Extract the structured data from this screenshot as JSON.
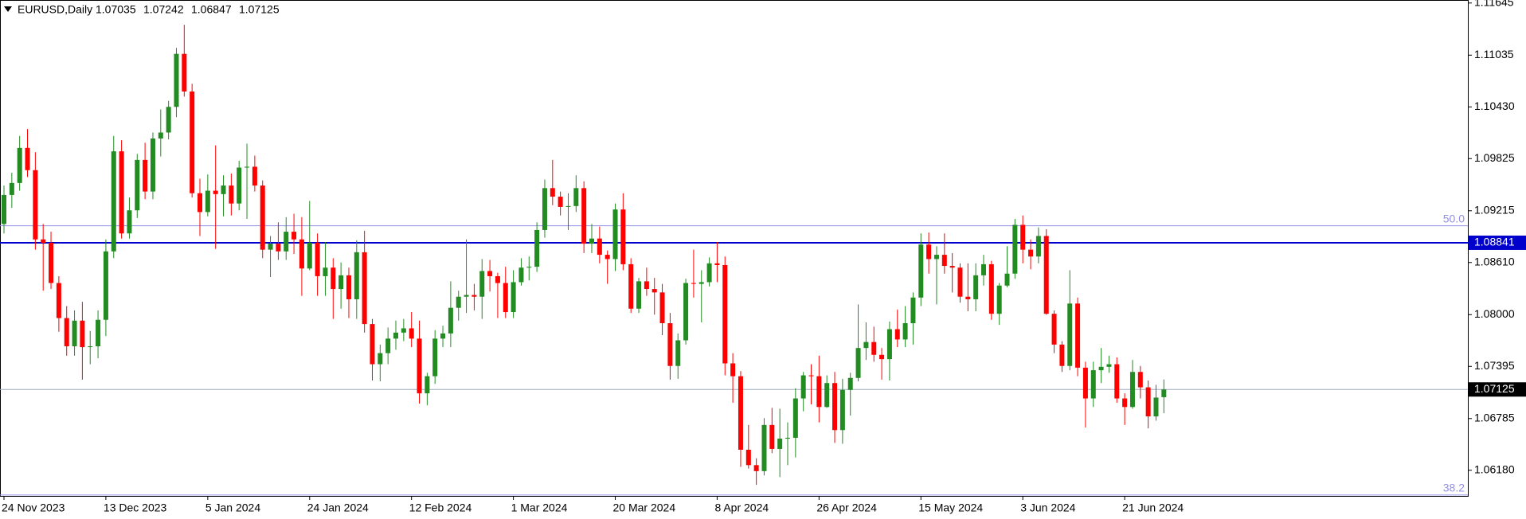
{
  "chart_data": {
    "type": "candlestick",
    "title": "EURUSD,Daily",
    "up_color": "#228b22",
    "down_color": "#ff0000",
    "ylim": [
      1.0588,
      1.1168
    ],
    "yticks": [
      1.11645,
      1.11035,
      {
        "value": 1.1043,
        "label": "1.10430"
      },
      1.09825,
      1.09215,
      {
        "value": 1.0861,
        "label": "1.08610"
      },
      {
        "value": 1.08,
        "label": "1.08000"
      },
      1.07395,
      1.06785,
      {
        "value": 1.0618,
        "label": "1.06180"
      }
    ],
    "hlines": [
      {
        "value": 1.08841,
        "color": "#0000cc"
      }
    ],
    "fib_levels": [
      {
        "value": 1.0904,
        "label": "50.0",
        "color": "#9090e8"
      },
      {
        "value": 1.0589,
        "label": "38.2",
        "color": "#9090e8"
      }
    ],
    "price_line_color": "#a0aec0",
    "categories": [
      "24 Nov 2023",
      null,
      null,
      null,
      null,
      null,
      null,
      null,
      null,
      null,
      null,
      null,
      null,
      "13 Dec 2023",
      null,
      null,
      null,
      null,
      null,
      null,
      null,
      null,
      null,
      null,
      null,
      null,
      "5 Jan 2024",
      null,
      null,
      null,
      null,
      null,
      null,
      null,
      null,
      null,
      null,
      null,
      null,
      "24 Jan 2024",
      null,
      null,
      null,
      null,
      null,
      null,
      null,
      null,
      null,
      null,
      null,
      null,
      "12 Feb 2024",
      null,
      null,
      null,
      null,
      null,
      null,
      null,
      null,
      null,
      null,
      null,
      null,
      "1 Mar 2024",
      null,
      null,
      null,
      null,
      null,
      null,
      null,
      null,
      null,
      null,
      null,
      null,
      "20 Mar 2024",
      null,
      null,
      null,
      null,
      null,
      null,
      null,
      null,
      null,
      null,
      null,
      null,
      "8 Apr 2024",
      null,
      null,
      null,
      null,
      null,
      null,
      null,
      null,
      null,
      null,
      null,
      null,
      "26 Apr 2024",
      null,
      null,
      null,
      null,
      null,
      null,
      null,
      null,
      null,
      null,
      null,
      null,
      "15 May 2024",
      null,
      null,
      null,
      null,
      null,
      null,
      null,
      null,
      null,
      null,
      null,
      null,
      "3 Jun 2024",
      null,
      null,
      null,
      null,
      null,
      null,
      null,
      null,
      null,
      null,
      null,
      null,
      "21 Jun 2024",
      null,
      null,
      null,
      null,
      null
    ],
    "open": [
      1.0906,
      1.094,
      1.0954,
      1.0995,
      1.0969,
      1.0888,
      1.0884,
      1.0837,
      1.0796,
      1.0763,
      1.0793,
      1.0762,
      1.0763,
      1.0794,
      1.0874,
      1.0991,
      1.0895,
      1.0922,
      1.0981,
      1.0944,
      1.1006,
      1.1013,
      1.1043,
      1.1105,
      1.1061,
      1.0942,
      1.092,
      1.0945,
      1.0941,
      1.0951,
      1.093,
      1.0972,
      1.0973,
      1.0951,
      1.0876,
      1.0883,
      1.0874,
      1.0897,
      1.0888,
      1.0854,
      1.0884,
      1.0845,
      1.0855,
      1.083,
      1.0846,
      1.0818,
      1.0873,
      1.0789,
      1.0742,
      1.0755,
      1.0772,
      1.0779,
      1.0784,
      1.0772,
      1.0708,
      1.0728,
      1.0772,
      1.0778,
      1.0808,
      1.0821,
      1.0823,
      1.0821,
      1.0851,
      1.0845,
      1.0837,
      1.0803,
      1.0838,
      1.0855,
      1.0856,
      1.0899,
      1.0948,
      1.0938,
      1.0926,
      1.0927,
      1.0948,
      1.0883,
      1.0889,
      1.087,
      1.0865,
      1.0923,
      1.0859,
      1.0807,
      1.0839,
      1.083,
      1.0826,
      1.079,
      1.074,
      1.077,
      1.0837,
      1.0836,
      1.0838,
      1.086,
      1.0858,
      1.0743,
      1.0728,
      1.0642,
      1.0624,
      1.0617,
      1.0671,
      1.0643,
      1.0655,
      1.0656,
      1.0702,
      1.0729,
      1.0728,
      1.0692,
      1.072,
      1.0665,
      1.0712,
      1.0726,
      1.0761,
      1.0768,
      1.0753,
      1.0748,
      1.0783,
      1.0771,
      1.079,
      1.082,
      1.0882,
      1.0865,
      1.087,
      1.0857,
      1.0855,
      1.0821,
      1.0818,
      1.0846,
      1.0859,
      1.0801,
      1.0834,
      1.0848,
      1.0905,
      1.0876,
      1.0868,
      1.0892,
      1.0801,
      1.0765,
      1.074,
      1.0813,
      1.0738,
      1.0702,
      1.0735,
      1.0739,
      1.0742,
      1.0702,
      1.0692,
      1.0733,
      1.0715,
      1.0681,
      1.07035
    ],
    "high": [
      1.0951,
      1.0966,
      1.1009,
      1.1017,
      1.099,
      1.0906,
      1.0897,
      1.0845,
      1.081,
      1.0805,
      1.0815,
      1.0781,
      1.0805,
      1.0888,
      1.1009,
      1.1004,
      1.0937,
      1.0988,
      1.1001,
      1.1013,
      1.104,
      1.105,
      1.1112,
      1.1139,
      1.107,
      1.0959,
      1.0964,
      1.0998,
      1.0963,
      1.0965,
      1.098,
      1.1,
      1.0986,
      1.0957,
      1.0892,
      1.0908,
      1.0914,
      1.0918,
      1.0914,
      1.0933,
      1.0895,
      1.0885,
      1.0866,
      1.0861,
      1.0855,
      1.0887,
      1.0898,
      1.0795,
      1.0765,
      1.0785,
      1.0793,
      1.0795,
      1.0803,
      1.0793,
      1.0732,
      1.0782,
      1.0787,
      1.0839,
      1.0828,
      1.0888,
      1.0836,
      1.0865,
      1.0864,
      1.0849,
      1.0856,
      1.0852,
      1.0866,
      1.0868,
      1.0908,
      1.0958,
      1.0981,
      1.0944,
      1.0942,
      1.0963,
      1.0956,
      1.0906,
      1.0903,
      1.0875,
      1.093,
      1.0942,
      1.0866,
      1.0843,
      1.0855,
      1.0843,
      1.0836,
      1.0802,
      1.0778,
      1.0842,
      1.0876,
      1.0852,
      1.0867,
      1.0885,
      1.0868,
      1.0755,
      1.0734,
      1.0671,
      1.0632,
      1.0679,
      1.0691,
      1.069,
      1.0674,
      1.0714,
      1.0733,
      1.0742,
      1.0752,
      1.0729,
      1.0733,
      1.0725,
      1.0732,
      1.0812,
      1.0791,
      1.0786,
      1.0761,
      1.0792,
      1.0806,
      1.081,
      1.0826,
      1.0895,
      1.0896,
      1.088,
      1.0895,
      1.0872,
      1.086,
      1.086,
      1.086,
      1.087,
      1.0863,
      1.0837,
      1.088,
      1.0912,
      1.0916,
      1.0888,
      1.0902,
      1.09,
      1.0805,
      1.0769,
      1.0852,
      1.082,
      1.0745,
      1.0745,
      1.0761,
      1.0752,
      1.075,
      1.0708,
      1.0747,
      1.074,
      1.0723,
      1.0718,
      1.07242
    ],
    "low": [
      1.0895,
      1.0925,
      1.0945,
      1.0961,
      1.0876,
      1.0828,
      1.083,
      1.078,
      1.0752,
      1.0752,
      1.0724,
      1.0742,
      1.0749,
      1.0775,
      1.0866,
      1.0889,
      1.0889,
      1.0913,
      1.0935,
      1.0935,
      1.0985,
      1.1005,
      1.1031,
      1.1055,
      1.0937,
      1.0892,
      1.0915,
      1.0877,
      1.0915,
      1.0916,
      1.0922,
      1.0912,
      1.0944,
      1.0866,
      1.0844,
      1.0864,
      1.0864,
      1.0871,
      1.0822,
      1.0852,
      1.0822,
      1.0822,
      1.0795,
      1.0807,
      1.0796,
      1.0795,
      1.0779,
      1.0723,
      1.0722,
      1.0742,
      1.0759,
      1.0769,
      1.0762,
      1.0696,
      1.0694,
      1.0719,
      1.0762,
      1.0762,
      1.0793,
      1.0802,
      1.0805,
      1.0795,
      1.0827,
      1.0796,
      1.0796,
      1.0796,
      1.0834,
      1.084,
      1.085,
      1.089,
      1.0928,
      1.0916,
      1.0899,
      1.092,
      1.0872,
      1.0872,
      1.086,
      1.0836,
      1.0851,
      1.0852,
      1.0802,
      1.0802,
      1.0822,
      1.08,
      1.0776,
      1.0724,
      1.0725,
      1.0765,
      1.082,
      1.0791,
      1.0833,
      1.0838,
      1.0729,
      1.0697,
      1.0622,
      1.062,
      1.0601,
      1.0612,
      1.0638,
      1.061,
      1.0624,
      1.0633,
      1.0687,
      1.0695,
      1.0674,
      1.0691,
      1.065,
      1.0649,
      1.0682,
      1.0722,
      1.0747,
      1.0745,
      1.0724,
      1.0723,
      1.0762,
      1.0762,
      1.0765,
      1.081,
      1.0848,
      1.0812,
      1.0848,
      1.0826,
      1.0814,
      1.0804,
      1.0804,
      1.0834,
      1.0794,
      1.0788,
      1.0832,
      1.0842,
      1.086,
      1.0853,
      1.086,
      1.08,
      1.0755,
      1.0733,
      1.0735,
      1.0728,
      1.0668,
      1.0692,
      1.072,
      1.0732,
      1.0697,
      1.0671,
      1.069,
      1.0702,
      1.0667,
      1.0676,
      1.06847
    ],
    "close": [
      1.094,
      1.0954,
      1.0995,
      1.0969,
      1.0888,
      1.0884,
      1.0837,
      1.0796,
      1.0763,
      1.0793,
      1.0762,
      1.0763,
      1.0794,
      1.0874,
      1.0991,
      1.0895,
      1.0922,
      1.0981,
      1.0944,
      1.1006,
      1.1013,
      1.1043,
      1.1105,
      1.1061,
      1.0942,
      1.092,
      1.0945,
      1.0941,
      1.0951,
      1.093,
      1.0972,
      1.0973,
      1.0951,
      1.0876,
      1.0883,
      1.0874,
      1.0897,
      1.0888,
      1.0854,
      1.0884,
      1.0845,
      1.0855,
      1.083,
      1.0846,
      1.0818,
      1.0873,
      1.0789,
      1.0742,
      1.0755,
      1.0772,
      1.0779,
      1.0784,
      1.0772,
      1.0708,
      1.0728,
      1.0772,
      1.0778,
      1.0808,
      1.0821,
      1.0823,
      1.0821,
      1.0851,
      1.0845,
      1.0837,
      1.0803,
      1.0838,
      1.0855,
      1.0856,
      1.0899,
      1.0948,
      1.0938,
      1.0926,
      1.0927,
      1.0948,
      1.0883,
      1.0889,
      1.087,
      1.0865,
      1.0923,
      1.0859,
      1.0807,
      1.0839,
      1.083,
      1.0826,
      1.079,
      1.074,
      1.077,
      1.0837,
      1.0836,
      1.0838,
      1.086,
      1.0858,
      1.0743,
      1.0728,
      1.0642,
      1.0624,
      1.0617,
      1.0671,
      1.0643,
      1.0655,
      1.0656,
      1.0702,
      1.0729,
      1.0728,
      1.0692,
      1.072,
      1.0665,
      1.0712,
      1.0726,
      1.0761,
      1.0768,
      1.0753,
      1.0748,
      1.0783,
      1.0771,
      1.079,
      1.082,
      1.0882,
      1.0865,
      1.087,
      1.0857,
      1.0855,
      1.0821,
      1.0818,
      1.0846,
      1.0859,
      1.0801,
      1.0834,
      1.0848,
      1.0905,
      1.0876,
      1.0868,
      1.0892,
      1.0801,
      1.0765,
      1.074,
      1.0813,
      1.0738,
      1.0702,
      1.0735,
      1.0739,
      1.0742,
      1.0702,
      1.0692,
      1.0733,
      1.0715,
      1.0681,
      1.0703,
      1.07125
    ]
  }
}
